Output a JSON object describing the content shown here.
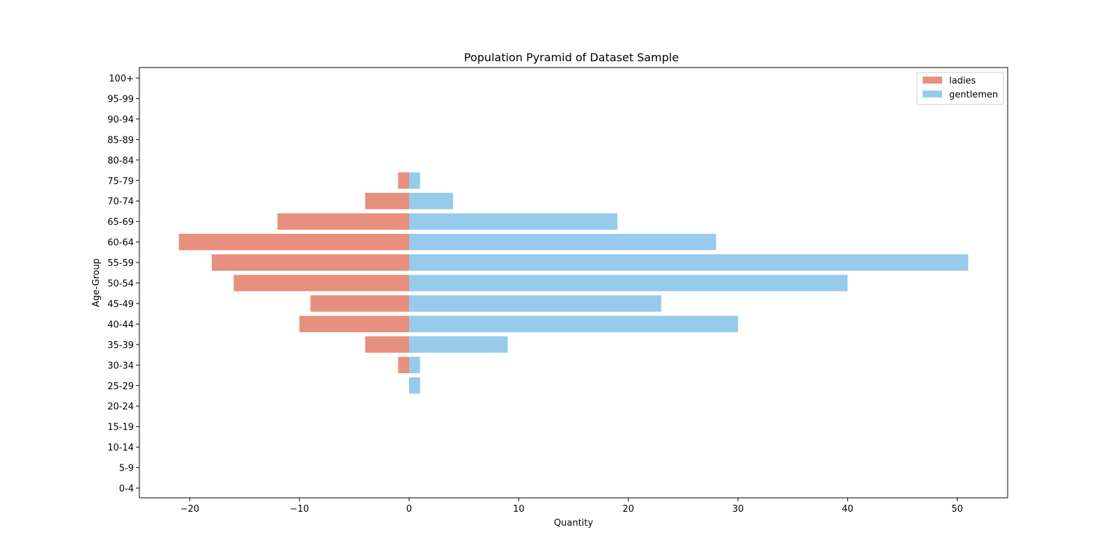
{
  "chart_data": {
    "type": "bar",
    "orientation": "horizontal",
    "title": "Population Pyramid of Dataset Sample",
    "xlabel": "Quantity",
    "ylabel": "Age-Group",
    "xlim": [
      -24.6,
      54.6
    ],
    "xticks": [
      -20,
      -10,
      0,
      10,
      20,
      30,
      40,
      50
    ],
    "xtick_labels": [
      "−20",
      "−10",
      "0",
      "10",
      "20",
      "30",
      "40",
      "50"
    ],
    "categories": [
      "0-4",
      "5-9",
      "10-14",
      "15-19",
      "20-24",
      "25-29",
      "30-34",
      "35-39",
      "40-44",
      "45-49",
      "50-54",
      "55-59",
      "60-64",
      "65-69",
      "70-74",
      "75-79",
      "80-84",
      "85-89",
      "90-94",
      "95-99",
      "100+"
    ],
    "series": [
      {
        "name": "ladies",
        "color": "#e8907f",
        "values": [
          0,
          0,
          0,
          0,
          0,
          0,
          -1,
          -4,
          -10,
          -9,
          -16,
          -18,
          -21,
          -12,
          -4,
          -1,
          0,
          0,
          0,
          0,
          0
        ]
      },
      {
        "name": "gentlemen",
        "color": "#97cbec",
        "values": [
          0,
          0,
          0,
          0,
          0,
          1,
          1,
          9,
          30,
          23,
          40,
          51,
          28,
          19,
          4,
          1,
          0,
          0,
          0,
          0,
          0
        ]
      }
    ],
    "grid": false,
    "legend_position": "top-right"
  }
}
